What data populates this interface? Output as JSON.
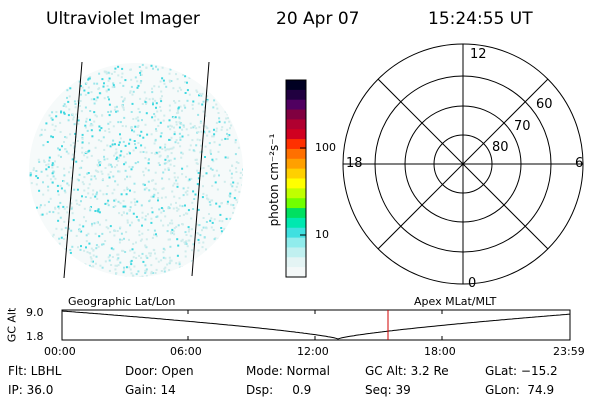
{
  "header": {
    "title": "Ultraviolet Imager",
    "date": "20 Apr 07",
    "time": "15:24:55 UT"
  },
  "colorbar": {
    "unit_label": "photon cm⁻²s⁻¹",
    "ticks": [
      "100",
      "10"
    ],
    "colors": [
      "#000022",
      "#200040",
      "#500060",
      "#800040",
      "#b00030",
      "#d00020",
      "#ff3000",
      "#ff7000",
      "#ffa000",
      "#ffd000",
      "#ffff00",
      "#c0ff00",
      "#70ff00",
      "#00e060",
      "#00e8b0",
      "#40e0e0",
      "#90ecec",
      "#c0f0f0",
      "#e4f4f4",
      "#f4f8f8"
    ]
  },
  "polar": {
    "hour_labels": {
      "top": "12",
      "left": "18",
      "right": "6",
      "bottom": "0"
    },
    "lat_labels": [
      "60",
      "70",
      "80"
    ]
  },
  "timeline": {
    "axis_label": "GC Alt",
    "y_top": "9.0",
    "y_bottom": "1.8",
    "left_title": "Geographic Lat/Lon",
    "right_title": "Apex MLat/MLT",
    "time_ticks": [
      "00:00",
      "06:00",
      "12:00",
      "18:00",
      "23:59"
    ],
    "marker_color": "#d00000"
  },
  "info": {
    "flt": "Flt: LBHL",
    "door": "Door: Open",
    "mode": "Mode: Normal",
    "gc_alt": "GC Alt: 3.2 Re",
    "glat": "GLat: −15.2",
    "ip": "IP: 36.0",
    "gain": "Gain: 14",
    "dsp": "Dsp:     0.9",
    "seq": "Seq: 39",
    "glon": "GLon:  74.9"
  }
}
